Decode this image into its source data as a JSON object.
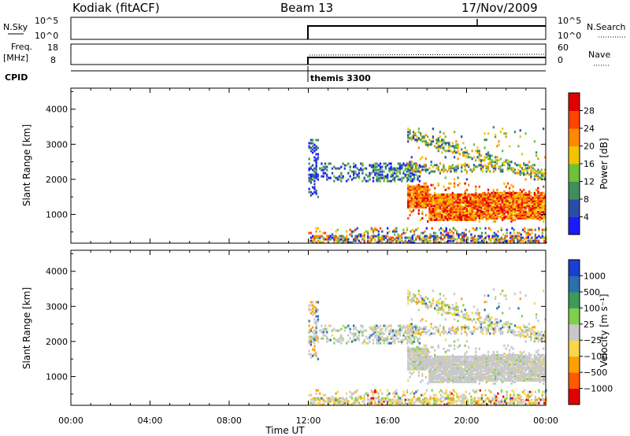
{
  "header": {
    "title": "Kodiak (fitACF)",
    "beam": "Beam 13",
    "date": "17/Nov/2009"
  },
  "panels": {
    "nsky": {
      "label": "N.Sky",
      "ticks": [
        "10^5",
        "10^0"
      ]
    },
    "nsearch": {
      "label": "N.Search",
      "ticks": [
        "10^5",
        "10^0"
      ]
    },
    "freq": {
      "label_line1": "Freq.",
      "label_line2": "[MHz]",
      "ticks": [
        "18",
        "8"
      ]
    },
    "nave": {
      "label": "Nave",
      "ticks": [
        "60",
        "0"
      ]
    },
    "cpid": {
      "label": "CPID",
      "value": "themis 3300"
    }
  },
  "colors": {
    "power": [
      "#1a1aff",
      "#2a4da8",
      "#3f8f5e",
      "#6fc03a",
      "#f2c400",
      "#ff8a00",
      "#ff4400",
      "#e00000"
    ],
    "velocity": [
      "#e00000",
      "#ff5a00",
      "#ffa000",
      "#f7d84a",
      "#c8c8c8",
      "#7ed04a",
      "#3d9a5a",
      "#2a6fb0",
      "#1a3fd0"
    ]
  },
  "chart_data": [
    {
      "type": "heatmap",
      "name": "power",
      "ylabel": "Slant Range [km]",
      "xlabel": "Time UT",
      "xticks": [
        "00:00",
        "04:00",
        "08:00",
        "12:00",
        "16:00",
        "20:00",
        "00:00"
      ],
      "yticks": [
        "1000",
        "2000",
        "3000",
        "4000"
      ],
      "xlim_hours": [
        0,
        24
      ],
      "ylim_km": [
        180,
        4600
      ],
      "colorbar": {
        "label": "Power [dB]",
        "ticks": [
          "4",
          "8",
          "12",
          "16",
          "20",
          "24",
          "28"
        ],
        "range": [
          0,
          30
        ]
      },
      "data_start_hour": 12,
      "features": [
        {
          "desc": "near-range ground scatter",
          "hours": [
            12,
            24
          ],
          "range_km": [
            200,
            600
          ]
        },
        {
          "desc": "Pc band",
          "hours": [
            12,
            17.5
          ],
          "range_km": [
            2000,
            2400
          ]
        },
        {
          "desc": "strong F-region band",
          "hours": [
            17,
            24
          ],
          "range_km": [
            900,
            1800
          ]
        },
        {
          "desc": "upper band",
          "hours": [
            17,
            24
          ],
          "range_km": [
            2000,
            3400
          ]
        }
      ]
    },
    {
      "type": "heatmap",
      "name": "velocity",
      "ylabel": "Slant Range [km]",
      "xlabel": "Time UT",
      "xticks": [
        "00:00",
        "04:00",
        "08:00",
        "12:00",
        "16:00",
        "20:00",
        "00:00"
      ],
      "yticks": [
        "1000",
        "2000",
        "3000",
        "4000"
      ],
      "xlim_hours": [
        0,
        24
      ],
      "ylim_km": [
        180,
        4600
      ],
      "colorbar": {
        "label": "Velocity [m s⁻¹]",
        "ticks": [
          "1000",
          "500",
          "100",
          "25",
          "−25",
          "−100",
          "−500",
          "−1000"
        ],
        "range": [
          -1000,
          1000
        ]
      },
      "data_start_hour": 12
    }
  ]
}
